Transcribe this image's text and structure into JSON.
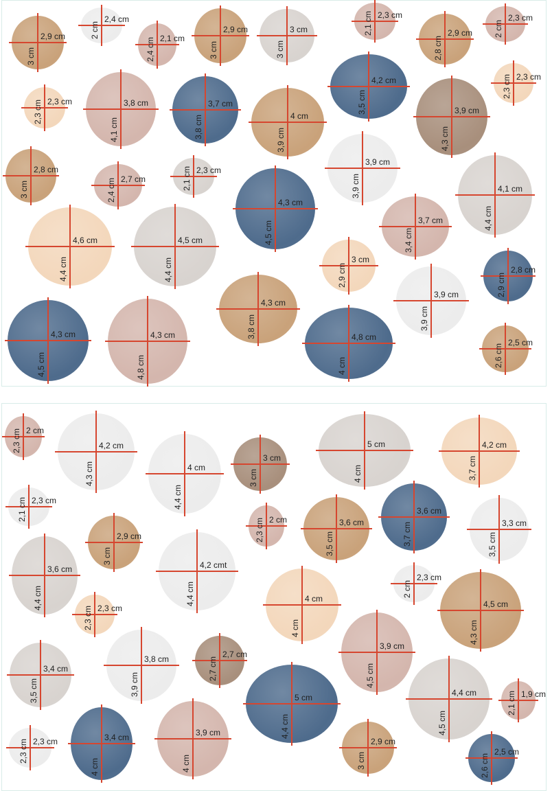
{
  "palette": {
    "tan": "#c9a27a",
    "rose": "#d4b6ad",
    "navy": "#4e6b8c",
    "gray": "#d8d3cf",
    "peach": "#f3d7bb",
    "taupe": "#a88f7c",
    "light": "#ececec",
    "line": "#d6462f"
  },
  "sheets": [
    {
      "name": "top",
      "dots": [
        {
          "color": "tan",
          "w_label": "2,9 cm",
          "h_label": "3 cm"
        },
        {
          "color": "light",
          "w_label": "2,4 cm",
          "h_label": "2 cm"
        },
        {
          "color": "rose",
          "w_label": "2,1 cm",
          "h_label": "2,4 cm"
        },
        {
          "color": "tan",
          "w_label": "2,9 cm",
          "h_label": "3 cm"
        },
        {
          "color": "gray",
          "w_label": "3 cm",
          "h_label": "3 cm"
        },
        {
          "color": "rose",
          "w_label": "2,3 cm",
          "h_label": "2,1 cm"
        },
        {
          "color": "tan",
          "w_label": "2,9 cm",
          "h_label": "2,8 cm"
        },
        {
          "color": "rose",
          "w_label": "2,3 cm",
          "h_label": "2 cm"
        },
        {
          "color": "peach",
          "w_label": "2,3 cm",
          "h_label": "2,3 cm"
        },
        {
          "color": "rose",
          "w_label": "3,8 cm",
          "h_label": "4,1 cm"
        },
        {
          "color": "navy",
          "w_label": "3,7 cm",
          "h_label": "3,8 cm"
        },
        {
          "color": "tan",
          "w_label": "4 cm",
          "h_label": "3,9 cm"
        },
        {
          "color": "navy",
          "w_label": "4,2 cm",
          "h_label": "3,5 cm"
        },
        {
          "color": "taupe",
          "w_label": "3,9 cm",
          "h_label": "4,3 cm"
        },
        {
          "color": "peach",
          "w_label": "2,3 cm",
          "h_label": "2,3 cm"
        },
        {
          "color": "tan",
          "w_label": "2,8 cm",
          "h_label": "3 cm"
        },
        {
          "color": "rose",
          "w_label": "2,7 cm",
          "h_label": "2,4 cm"
        },
        {
          "color": "gray",
          "w_label": "2,3 cm",
          "h_label": "2,1 cm"
        },
        {
          "color": "light",
          "w_label": "3,9 cm",
          "h_label": "3,9 cm"
        },
        {
          "color": "gray",
          "w_label": "4,1 cm",
          "h_label": "4,4 cm"
        },
        {
          "color": "navy",
          "w_label": "4,3 cm",
          "h_label": "4,5 cm"
        },
        {
          "color": "peach",
          "w_label": "4,6 cm",
          "h_label": "4,4 cm"
        },
        {
          "color": "gray",
          "w_label": "4,5 cm",
          "h_label": "4,4 cm"
        },
        {
          "color": "rose",
          "w_label": "3,7 cm",
          "h_label": "3,4 cm"
        },
        {
          "color": "peach",
          "w_label": "3 cm",
          "h_label": "2,9 cm"
        },
        {
          "color": "navy",
          "w_label": "2,8 cm",
          "h_label": "2,9 cm"
        },
        {
          "color": "tan",
          "w_label": "4,3 cm",
          "h_label": "3,8 cm"
        },
        {
          "color": "light",
          "w_label": "3,9 cm",
          "h_label": "3,9 cm"
        },
        {
          "color": "navy",
          "w_label": "4,3 cm",
          "h_label": "4,5 cm"
        },
        {
          "color": "rose",
          "w_label": "4,3 cm",
          "h_label": "4,8 cm"
        },
        {
          "color": "navy",
          "w_label": "4,8 cm",
          "h_label": "4 cm"
        },
        {
          "color": "tan",
          "w_label": "2,5 cm",
          "h_label": "2,6 cm"
        }
      ]
    },
    {
      "name": "bottom",
      "dots": [
        {
          "color": "rose",
          "w_label": "2 cm",
          "h_label": "2,3 cm"
        },
        {
          "color": "light",
          "w_label": "4,2 cm",
          "h_label": "4,3 cm"
        },
        {
          "color": "light",
          "w_label": "4 cm",
          "h_label": "4,4 cm"
        },
        {
          "color": "taupe",
          "w_label": "3 cm",
          "h_label": "3 cm"
        },
        {
          "color": "gray",
          "w_label": "5 cm",
          "h_label": "4 cm"
        },
        {
          "color": "peach",
          "w_label": "4,2 cm",
          "h_label": "3,7 cm"
        },
        {
          "color": "light",
          "w_label": "2,3 cm",
          "h_label": "2,1 cm"
        },
        {
          "color": "tan",
          "w_label": "2,9 cm",
          "h_label": "3 cm"
        },
        {
          "color": "rose",
          "w_label": "2 cm",
          "h_label": "2,3 cm"
        },
        {
          "color": "tan",
          "w_label": "3,6 cm",
          "h_label": "3,5 cm"
        },
        {
          "color": "navy",
          "w_label": "3,6 cm",
          "h_label": "3,7 cm"
        },
        {
          "color": "light",
          "w_label": "3,3 cm",
          "h_label": "3,5 cm"
        },
        {
          "color": "gray",
          "w_label": "3,6 cm",
          "h_label": "4,4 cm"
        },
        {
          "color": "light",
          "w_label": "4,2 cmt",
          "h_label": "4,4 cm"
        },
        {
          "color": "light",
          "w_label": "2,3 cm",
          "h_label": "2 cm"
        },
        {
          "color": "peach",
          "w_label": "4 cm",
          "h_label": "4 cm"
        },
        {
          "color": "tan",
          "w_label": "4,5 cm",
          "h_label": "4,3 cm"
        },
        {
          "color": "peach",
          "w_label": "2,3 cm",
          "h_label": "2,3 cm"
        },
        {
          "color": "gray",
          "w_label": "3,4 cm",
          "h_label": "3,5 cm"
        },
        {
          "color": "light",
          "w_label": "3,8 cm",
          "h_label": "3,9 cm"
        },
        {
          "color": "taupe",
          "w_label": "2,7 cm",
          "h_label": "2,7 cm"
        },
        {
          "color": "rose",
          "w_label": "3,9 cm",
          "h_label": "4,5 cm"
        },
        {
          "color": "navy",
          "w_label": "5 cm",
          "h_label": "4,4 cm"
        },
        {
          "color": "gray",
          "w_label": "4,4 cm",
          "h_label": "4,5 cm"
        },
        {
          "color": "rose",
          "w_label": "1,9 cm",
          "h_label": "2,1 cm"
        },
        {
          "color": "light",
          "w_label": "2,3 cm",
          "h_label": "2,3 cm"
        },
        {
          "color": "navy",
          "w_label": "3,4 cm",
          "h_label": "4 cm"
        },
        {
          "color": "rose",
          "w_label": "3,9 cm",
          "h_label": "4 cm"
        },
        {
          "color": "tan",
          "w_label": "2,9 cm",
          "h_label": "3 cm"
        },
        {
          "color": "navy",
          "w_label": "2,5 cm",
          "h_label": "2,6 cm"
        }
      ]
    }
  ]
}
